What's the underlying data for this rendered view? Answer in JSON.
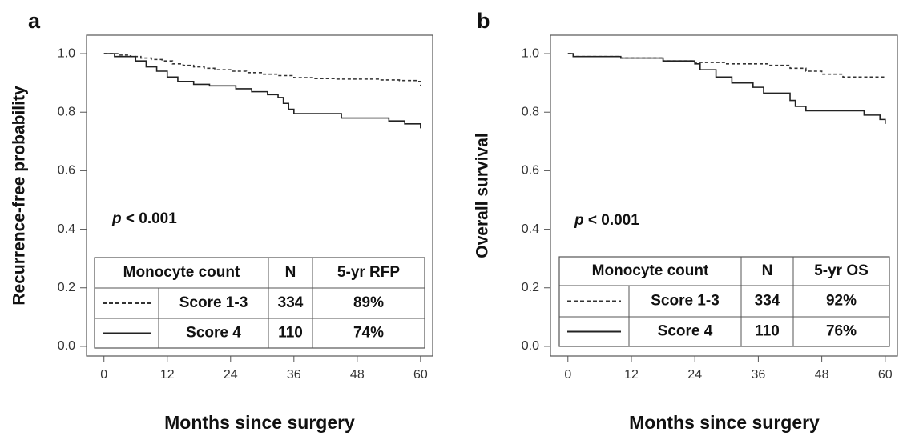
{
  "chart_data": [
    {
      "type": "step",
      "panel_label": "a",
      "xlabel": "Months since surgery",
      "ylabel": "Recurrence-free probability",
      "xlim": [
        -3.3,
        62.3
      ],
      "xticks": [
        0,
        12,
        24,
        36,
        48,
        60
      ],
      "ylim": [
        -0.033,
        1.063
      ],
      "yticks": [
        {
          "value": 0,
          "label": "0.0"
        },
        0.2,
        0.4,
        0.6,
        0.8,
        {
          "value": 1,
          "label": "1.0"
        }
      ],
      "annotation": {
        "symbol": "p",
        "text": "< 0.001"
      },
      "table": {
        "columns": [
          "Monocyte count",
          "N",
          "5-yr RFP"
        ],
        "n": [
          "334",
          "110"
        ],
        "rates": [
          "89%",
          "74%"
        ]
      },
      "series": [
        {
          "name": "Score 1-3",
          "color": "#333333",
          "dashed": true,
          "x": [
            0,
            3,
            5,
            7,
            9,
            11,
            13,
            15,
            17,
            19,
            21,
            24,
            27,
            30,
            33,
            36,
            40,
            44,
            48,
            52,
            56,
            59.5,
            60
          ],
          "values": [
            1.0,
            0.995,
            0.99,
            0.985,
            0.98,
            0.975,
            0.965,
            0.96,
            0.955,
            0.95,
            0.945,
            0.94,
            0.935,
            0.93,
            0.925,
            0.918,
            0.915,
            0.913,
            0.913,
            0.91,
            0.908,
            0.905,
            0.89
          ]
        },
        {
          "name": "Score 4",
          "color": "#222222",
          "dashed": false,
          "x": [
            0,
            2,
            6,
            8,
            10,
            12,
            14,
            17,
            20,
            25,
            28,
            31,
            33,
            34,
            35,
            36,
            45,
            54,
            57,
            60
          ],
          "values": [
            1.0,
            0.99,
            0.975,
            0.955,
            0.94,
            0.92,
            0.905,
            0.895,
            0.89,
            0.88,
            0.87,
            0.86,
            0.85,
            0.83,
            0.81,
            0.795,
            0.78,
            0.77,
            0.76,
            0.745
          ]
        }
      ]
    },
    {
      "type": "step",
      "panel_label": "b",
      "xlabel": "Months since surgery",
      "ylabel": "Overall survival",
      "xlim": [
        -3.3,
        62.3
      ],
      "xticks": [
        0,
        12,
        24,
        36,
        48,
        60
      ],
      "ylim": [
        -0.033,
        1.063
      ],
      "yticks": [
        {
          "value": 0,
          "label": "0.0"
        },
        0.2,
        0.4,
        0.6,
        0.8,
        {
          "value": 1,
          "label": "1.0"
        }
      ],
      "annotation": {
        "symbol": "p",
        "text": "< 0.001"
      },
      "table": {
        "columns": [
          "Monocyte count",
          "N",
          "5-yr OS"
        ],
        "n": [
          "334",
          "110"
        ],
        "rates": [
          "92%",
          "76%"
        ]
      },
      "series": [
        {
          "name": "Score 1-3",
          "color": "#333333",
          "dashed": true,
          "x": [
            0,
            1,
            10,
            18,
            24,
            30,
            38,
            42,
            45,
            48,
            52,
            60
          ],
          "values": [
            1.0,
            0.99,
            0.985,
            0.975,
            0.97,
            0.965,
            0.96,
            0.95,
            0.94,
            0.93,
            0.92,
            0.92
          ]
        },
        {
          "name": "Score 4",
          "color": "#222222",
          "dashed": false,
          "x": [
            0,
            1,
            10,
            18,
            24,
            25,
            28,
            31,
            35,
            37,
            42,
            43,
            45,
            50,
            56,
            59,
            60
          ],
          "values": [
            1.0,
            0.99,
            0.985,
            0.975,
            0.965,
            0.945,
            0.92,
            0.9,
            0.885,
            0.865,
            0.84,
            0.82,
            0.805,
            0.805,
            0.79,
            0.775,
            0.76
          ]
        }
      ]
    }
  ]
}
